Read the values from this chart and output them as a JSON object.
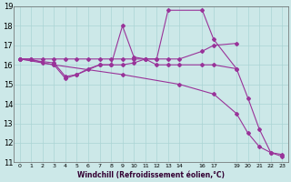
{
  "xlabel": "Windchill (Refroidissement éolien,°C)",
  "bg_color": "#cce8e8",
  "grid_color": "#aad4d4",
  "line_color": "#993399",
  "xlim": [
    -0.5,
    23.5
  ],
  "ylim": [
    11,
    19
  ],
  "yticks": [
    11,
    12,
    13,
    14,
    15,
    16,
    17,
    18,
    19
  ],
  "xtick_positions": [
    0,
    1,
    2,
    3,
    4,
    5,
    6,
    7,
    8,
    9,
    10,
    11,
    12,
    13,
    14,
    16,
    17,
    19,
    20,
    21,
    22,
    23
  ],
  "xtick_labels": [
    "0",
    "1",
    "2",
    "3",
    "4",
    "5",
    "6",
    "7",
    "8",
    "9",
    "10",
    "11",
    "12",
    "13",
    "14",
    "16",
    "17",
    "19",
    "20",
    "21",
    "22",
    "23"
  ],
  "series1_x": [
    0,
    1,
    2,
    3,
    4,
    5,
    6,
    7,
    8,
    9,
    10,
    11,
    12,
    13,
    14,
    16,
    17,
    19
  ],
  "series1_y": [
    16.3,
    16.3,
    16.3,
    16.3,
    16.3,
    16.3,
    16.3,
    16.3,
    16.3,
    16.3,
    16.3,
    16.3,
    16.3,
    16.3,
    16.3,
    16.7,
    17.0,
    17.1
  ],
  "series2_x": [
    0,
    1,
    2,
    3,
    4,
    5,
    6,
    7,
    8,
    9,
    10,
    11,
    12,
    13,
    14,
    16,
    17,
    19
  ],
  "series2_y": [
    16.3,
    16.3,
    16.1,
    16.0,
    15.3,
    15.5,
    15.8,
    16.0,
    16.0,
    16.0,
    16.1,
    16.3,
    16.0,
    16.0,
    16.0,
    16.0,
    16.0,
    15.8
  ],
  "series3_x": [
    0,
    3,
    4,
    5,
    7,
    8,
    9,
    10,
    11,
    12,
    13,
    16,
    17,
    19,
    20,
    21,
    22,
    23
  ],
  "series3_y": [
    16.3,
    16.1,
    15.4,
    15.5,
    16.0,
    16.0,
    18.0,
    16.4,
    16.3,
    16.3,
    18.8,
    18.8,
    17.3,
    15.8,
    14.3,
    12.7,
    11.5,
    11.4
  ],
  "series4_x": [
    0,
    3,
    9,
    14,
    17,
    19,
    20,
    21,
    22,
    23
  ],
  "series4_y": [
    16.3,
    16.0,
    15.5,
    15.0,
    14.5,
    13.5,
    12.5,
    11.8,
    11.5,
    11.3
  ]
}
